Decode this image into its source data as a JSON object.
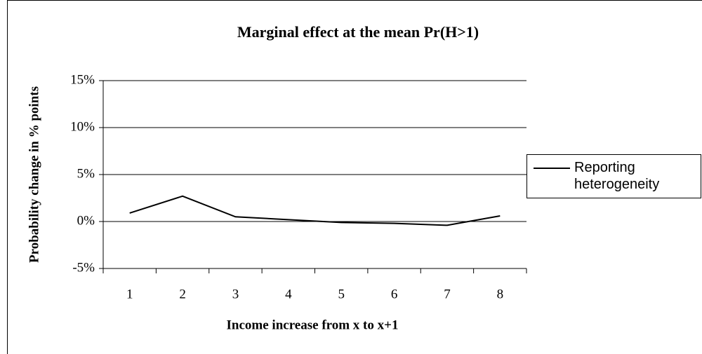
{
  "chart_data": {
    "type": "line",
    "title": "Marginal effect at the mean Pr(H>1)",
    "x_label": "Income increase from x to x+1",
    "y_label": "Probability change in % points",
    "categories": [
      "1",
      "2",
      "3",
      "4",
      "5",
      "6",
      "7",
      "8"
    ],
    "series": [
      {
        "name": "Reporting heterogeneity",
        "color": "#000000",
        "values": [
          0.9,
          2.7,
          0.5,
          0.2,
          -0.1,
          -0.2,
          -0.4,
          0.6
        ]
      }
    ],
    "ylim": [
      -5,
      15
    ],
    "yticks": [
      {
        "value": -5,
        "label": "-5%"
      },
      {
        "value": 0,
        "label": "0%"
      },
      {
        "value": 5,
        "label": "5%"
      },
      {
        "value": 10,
        "label": "10%"
      },
      {
        "value": 15,
        "label": "15%"
      }
    ],
    "grid": true,
    "legend": "right"
  }
}
